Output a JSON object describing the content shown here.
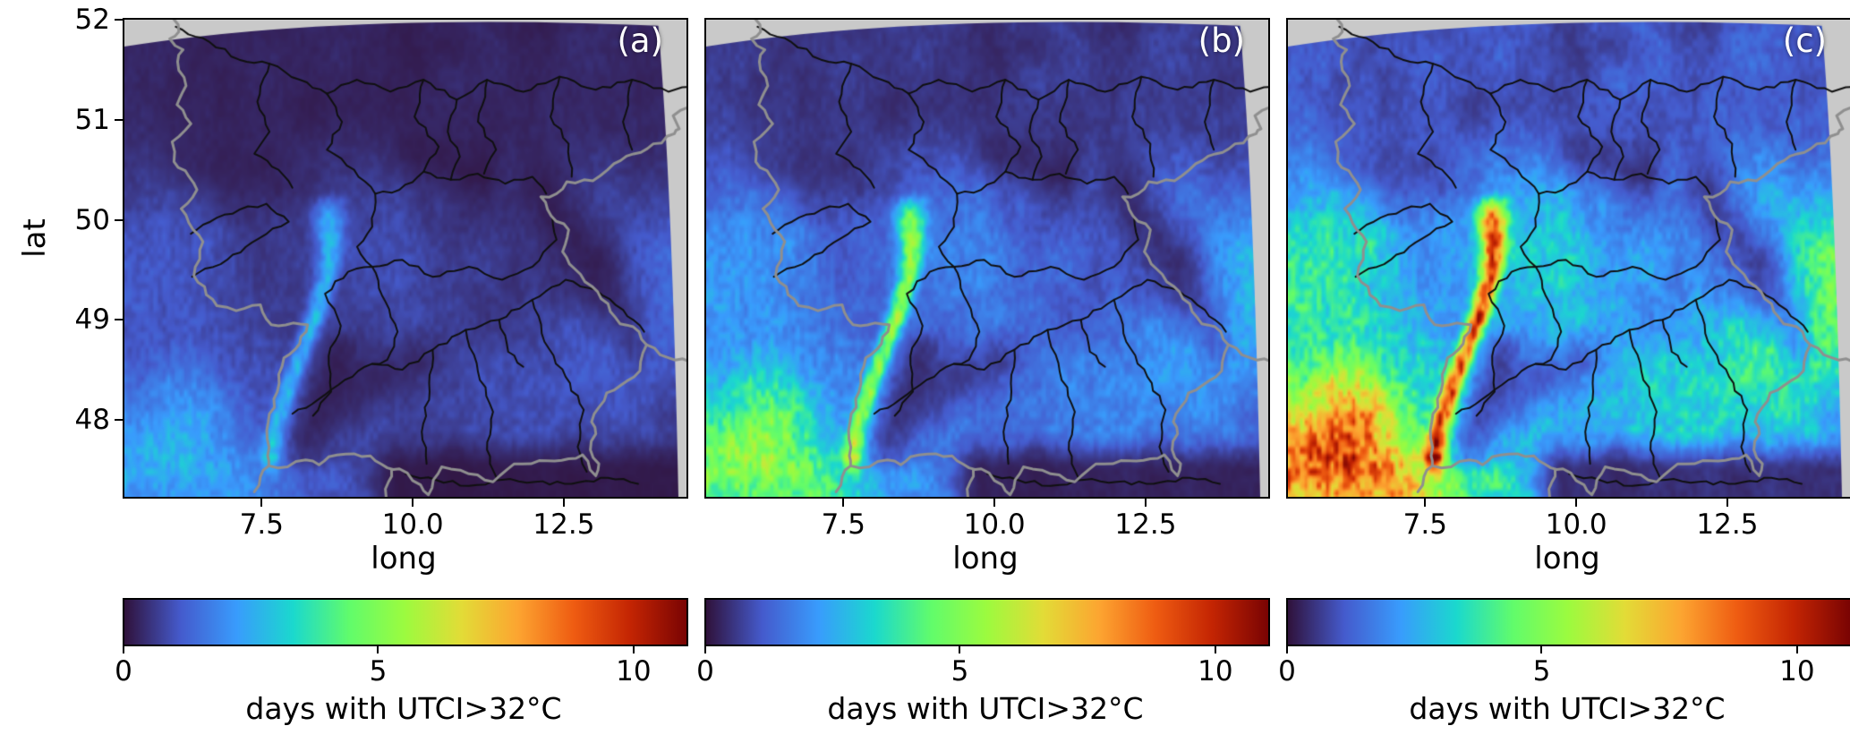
{
  "figure": {
    "xlabel": "long",
    "ylabel": "lat",
    "x_ticks": [
      "7.5",
      "10.0",
      "12.5"
    ],
    "x_tick_values": [
      7.5,
      10.0,
      12.5
    ],
    "y_ticks": [
      "52",
      "51",
      "50",
      "49",
      "48"
    ],
    "y_tick_values": [
      52,
      51,
      50,
      49,
      48
    ],
    "colorbar": {
      "label": "days with UTCI>32°C",
      "ticks": [
        "0",
        "5",
        "10"
      ],
      "tick_values": [
        0,
        5,
        10
      ],
      "vmin": 0,
      "vmax": 11
    }
  },
  "chart_data": {
    "type": "heatmap",
    "variable": "days with UTCI>32°C",
    "x": {
      "label": "long",
      "range": [
        5.2,
        14.5
      ]
    },
    "y": {
      "label": "lat",
      "range": [
        47.25,
        52.02
      ]
    },
    "panels": [
      {
        "label": "(a)",
        "scale": 0.3
      },
      {
        "label": "(b)",
        "scale": 0.6
      },
      {
        "label": "(c)",
        "scale": 1.05
      }
    ],
    "colormap": "turbo",
    "colormap_stops": [
      [
        48,
        18,
        59
      ],
      [
        69,
        91,
        205
      ],
      [
        57,
        156,
        253
      ],
      [
        27,
        217,
        206
      ],
      [
        97,
        252,
        108
      ],
      [
        157,
        251,
        63
      ],
      [
        227,
        220,
        55
      ],
      [
        253,
        165,
        49
      ],
      [
        239,
        92,
        18
      ],
      [
        196,
        37,
        3
      ],
      [
        122,
        4,
        3
      ]
    ],
    "outside_color": "#c9c9c9",
    "country_border_color": "#8f8f8f",
    "basin_border_color": "#101010",
    "features": {
      "rhine_valley_amp": 6.3,
      "hotspots": [
        [
          5.55,
          47.45,
          1.35,
          0.75,
          5.2
        ],
        [
          6.4,
          48.1,
          0.9,
          0.55,
          2.2
        ],
        [
          7.25,
          47.3,
          0.8,
          0.4,
          2.6
        ],
        [
          13.55,
          48.8,
          0.85,
          0.5,
          2.3
        ],
        [
          14.35,
          49.9,
          0.7,
          0.8,
          1.7
        ]
      ],
      "dark_bands": [
        [
          12.15,
          50.3,
          13.6,
          48.85,
          0.28,
          0.62
        ],
        [
          8.75,
          48.3,
          10.1,
          48.62,
          0.22,
          0.45
        ],
        [
          10.0,
          50.72,
          11.1,
          50.42,
          0.2,
          0.5
        ]
      ],
      "dark_blobs": [
        [
          8.25,
          51.15,
          0.45,
          0.3,
          0.45
        ],
        [
          10.6,
          51.8,
          0.35,
          0.25,
          0.4
        ],
        [
          6.85,
          50.35,
          0.6,
          0.4,
          0.35
        ]
      ]
    },
    "borders": {
      "country": [
        [
          [
            6.0,
            52.1
          ],
          [
            6.1,
            51.9
          ],
          [
            5.95,
            51.83
          ],
          [
            6.17,
            51.72
          ],
          [
            6.08,
            51.6
          ],
          [
            6.22,
            51.36
          ],
          [
            6.07,
            51.17
          ],
          [
            6.3,
            50.98
          ],
          [
            5.99,
            50.8
          ],
          [
            6.02,
            50.6
          ],
          [
            6.27,
            50.45
          ],
          [
            6.4,
            50.32
          ],
          [
            6.14,
            50.13
          ],
          [
            6.5,
            49.8
          ],
          [
            6.35,
            49.46
          ],
          [
            6.73,
            49.16
          ],
          [
            7.05,
            49.11
          ],
          [
            7.45,
            49.17
          ],
          [
            7.63,
            48.97
          ],
          [
            8.23,
            48.97
          ],
          [
            8.1,
            48.78
          ],
          [
            7.84,
            48.64
          ],
          [
            7.73,
            48.3
          ],
          [
            7.58,
            48.0
          ],
          [
            7.57,
            47.66
          ],
          [
            7.59,
            47.56
          ],
          [
            7.9,
            47.55
          ],
          [
            8.2,
            47.62
          ],
          [
            8.42,
            47.57
          ],
          [
            8.58,
            47.65
          ],
          [
            9.0,
            47.68
          ],
          [
            9.27,
            47.66
          ],
          [
            9.55,
            47.54
          ],
          [
            9.75,
            47.53
          ],
          [
            10.1,
            47.37
          ],
          [
            10.23,
            47.27
          ],
          [
            10.45,
            47.55
          ],
          [
            10.9,
            47.48
          ],
          [
            11.3,
            47.4
          ],
          [
            11.65,
            47.58
          ],
          [
            12.2,
            47.61
          ],
          [
            12.55,
            47.63
          ],
          [
            12.78,
            47.67
          ],
          [
            13.0,
            47.46
          ],
          [
            13.05,
            47.58
          ],
          [
            12.91,
            47.72
          ],
          [
            13.0,
            47.88
          ],
          [
            12.93,
            48.0
          ],
          [
            13.18,
            48.29
          ],
          [
            13.4,
            48.36
          ],
          [
            13.73,
            48.51
          ],
          [
            13.84,
            48.77
          ],
          [
            13.62,
            48.95
          ],
          [
            13.4,
            48.98
          ],
          [
            13.03,
            49.3
          ],
          [
            12.65,
            49.53
          ],
          [
            12.45,
            49.7
          ],
          [
            12.55,
            49.92
          ],
          [
            12.26,
            50.06
          ],
          [
            12.09,
            50.25
          ],
          [
            12.35,
            50.28
          ],
          [
            12.52,
            50.4
          ],
          [
            12.95,
            50.41
          ],
          [
            13.3,
            50.58
          ],
          [
            13.85,
            50.73
          ],
          [
            14.3,
            50.88
          ],
          [
            14.38,
            50.93
          ],
          [
            14.28,
            51.06
          ],
          [
            14.55,
            51.15
          ],
          [
            14.6,
            51.4
          ]
        ],
        [
          [
            9.53,
            47.25
          ],
          [
            9.57,
            47.4
          ],
          [
            9.62,
            47.52
          ]
        ],
        [
          [
            13.84,
            48.77
          ],
          [
            14.2,
            48.64
          ],
          [
            14.55,
            48.6
          ]
        ],
        [
          [
            7.59,
            47.56
          ],
          [
            7.45,
            47.45
          ],
          [
            7.35,
            47.3
          ]
        ]
      ],
      "basins": [
        [
          [
            6.05,
            51.95
          ],
          [
            6.6,
            51.8
          ],
          [
            7.1,
            51.62
          ],
          [
            7.6,
            51.58
          ],
          [
            8.1,
            51.42
          ],
          [
            8.55,
            51.28
          ],
          [
            9.05,
            51.42
          ],
          [
            9.6,
            51.3
          ],
          [
            10.15,
            51.42
          ],
          [
            10.7,
            51.22
          ],
          [
            11.2,
            51.42
          ],
          [
            11.8,
            51.3
          ],
          [
            12.4,
            51.45
          ],
          [
            13.0,
            51.32
          ],
          [
            13.6,
            51.42
          ],
          [
            14.2,
            51.3
          ],
          [
            14.55,
            51.35
          ]
        ],
        [
          [
            10.15,
            51.42
          ],
          [
            10.0,
            51.05
          ],
          [
            10.4,
            50.75
          ],
          [
            10.15,
            50.5
          ]
        ],
        [
          [
            8.55,
            51.28
          ],
          [
            8.8,
            51.0
          ],
          [
            8.55,
            50.72
          ],
          [
            9.0,
            50.52
          ],
          [
            9.35,
            50.28
          ],
          [
            9.75,
            50.32
          ],
          [
            10.15,
            50.5
          ],
          [
            10.6,
            50.42
          ],
          [
            11.05,
            50.48
          ],
          [
            11.5,
            50.38
          ],
          [
            11.95,
            50.45
          ],
          [
            12.18,
            50.28
          ]
        ],
        [
          [
            7.98,
            48.08
          ],
          [
            8.4,
            48.22
          ],
          [
            8.85,
            48.42
          ],
          [
            9.3,
            48.58
          ],
          [
            9.8,
            48.52
          ],
          [
            10.3,
            48.72
          ],
          [
            10.85,
            48.92
          ],
          [
            11.4,
            49.02
          ],
          [
            11.95,
            49.22
          ],
          [
            12.5,
            49.42
          ],
          [
            13.0,
            49.32
          ],
          [
            13.45,
            49.12
          ],
          [
            13.8,
            48.9
          ]
        ],
        [
          [
            9.3,
            49.55
          ],
          [
            9.8,
            49.62
          ],
          [
            10.3,
            49.45
          ],
          [
            10.9,
            49.55
          ],
          [
            11.45,
            49.42
          ],
          [
            11.95,
            49.55
          ],
          [
            12.35,
            49.82
          ],
          [
            12.28,
            50.05
          ]
        ],
        [
          [
            8.32,
            48.06
          ],
          [
            8.62,
            48.3
          ],
          [
            8.58,
            48.66
          ],
          [
            8.78,
            48.96
          ],
          [
            8.52,
            49.28
          ],
          [
            8.9,
            49.5
          ],
          [
            9.3,
            49.55
          ],
          [
            9.52,
            49.2
          ],
          [
            9.72,
            48.9
          ],
          [
            9.55,
            48.62
          ],
          [
            9.3,
            48.58
          ]
        ],
        [
          [
            6.32,
            49.45
          ],
          [
            6.9,
            49.62
          ],
          [
            7.42,
            49.83
          ],
          [
            7.92,
            50.0
          ],
          [
            7.55,
            50.18
          ],
          [
            7.1,
            50.12
          ],
          [
            6.62,
            50.0
          ],
          [
            6.3,
            49.88
          ]
        ],
        [
          [
            7.6,
            51.58
          ],
          [
            7.4,
            51.2
          ],
          [
            7.6,
            50.9
          ],
          [
            7.35,
            50.68
          ],
          [
            7.75,
            50.52
          ],
          [
            7.98,
            50.34
          ]
        ],
        [
          [
            10.85,
            48.92
          ],
          [
            11.05,
            48.5
          ],
          [
            11.3,
            48.1
          ],
          [
            11.2,
            47.72
          ],
          [
            11.35,
            47.45
          ]
        ],
        [
          [
            11.95,
            49.22
          ],
          [
            12.15,
            48.8
          ],
          [
            12.5,
            48.45
          ],
          [
            12.8,
            48.12
          ],
          [
            12.7,
            47.75
          ],
          [
            12.85,
            47.5
          ]
        ],
        [
          [
            10.3,
            48.72
          ],
          [
            10.25,
            48.3
          ],
          [
            10.12,
            47.9
          ],
          [
            10.2,
            47.58
          ]
        ],
        [
          [
            12.4,
            51.45
          ],
          [
            12.25,
            51.05
          ],
          [
            12.55,
            50.78
          ],
          [
            12.6,
            50.45
          ]
        ],
        [
          [
            13.6,
            51.42
          ],
          [
            13.45,
            51.0
          ],
          [
            13.6,
            50.72
          ]
        ],
        [
          [
            11.2,
            51.42
          ],
          [
            11.05,
            51.0
          ],
          [
            11.35,
            50.72
          ],
          [
            11.15,
            50.48
          ]
        ],
        [
          [
            10.7,
            51.22
          ],
          [
            10.55,
            50.9
          ],
          [
            10.75,
            50.65
          ],
          [
            10.6,
            50.42
          ]
        ],
        [
          [
            9.85,
            47.48
          ],
          [
            10.35,
            47.42
          ],
          [
            10.9,
            47.36
          ],
          [
            11.45,
            47.42
          ],
          [
            12.0,
            47.4
          ],
          [
            12.6,
            47.38
          ],
          [
            13.2,
            47.44
          ],
          [
            13.7,
            47.38
          ]
        ],
        [
          [
            11.4,
            49.02
          ],
          [
            11.55,
            48.7
          ],
          [
            11.8,
            48.55
          ]
        ],
        [
          [
            9.35,
            50.28
          ],
          [
            9.3,
            49.95
          ],
          [
            9.05,
            49.75
          ],
          [
            9.3,
            49.55
          ]
        ]
      ]
    }
  }
}
